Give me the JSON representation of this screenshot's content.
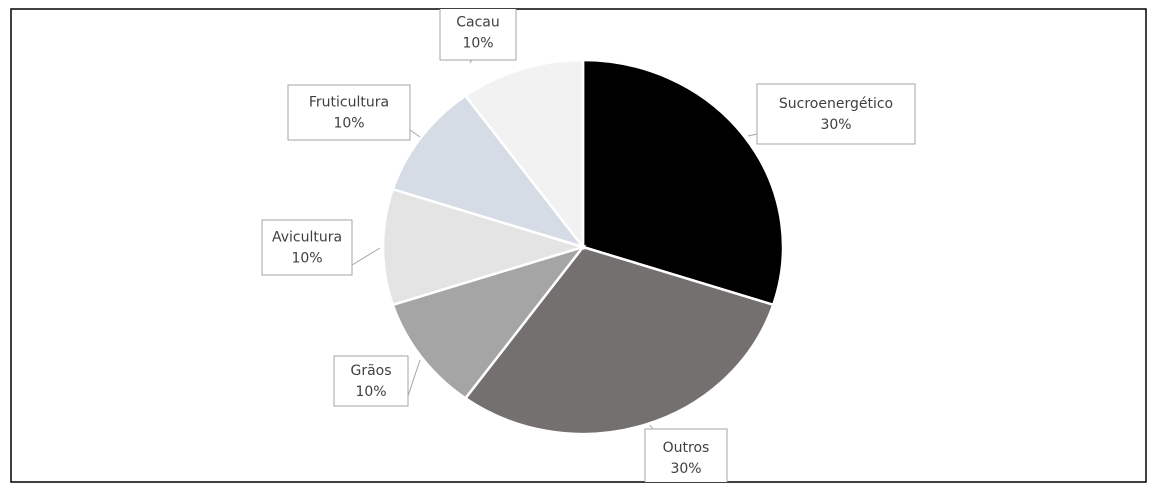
{
  "chart_data": {
    "type": "pie",
    "categories": [
      "Sucroenergético",
      "Outros",
      "Grãos",
      "Avicultura",
      "Fruticultura",
      "Cacau"
    ],
    "values": [
      30,
      30,
      10,
      10,
      10,
      10
    ],
    "value_labels": [
      "30%",
      "30%",
      "10%",
      "10%",
      "10%",
      "10%"
    ],
    "colors": [
      "#000000",
      "#757070",
      "#a5a5a5",
      "#e4e4e4",
      "#d6dce5",
      "#f2f2f2"
    ]
  }
}
